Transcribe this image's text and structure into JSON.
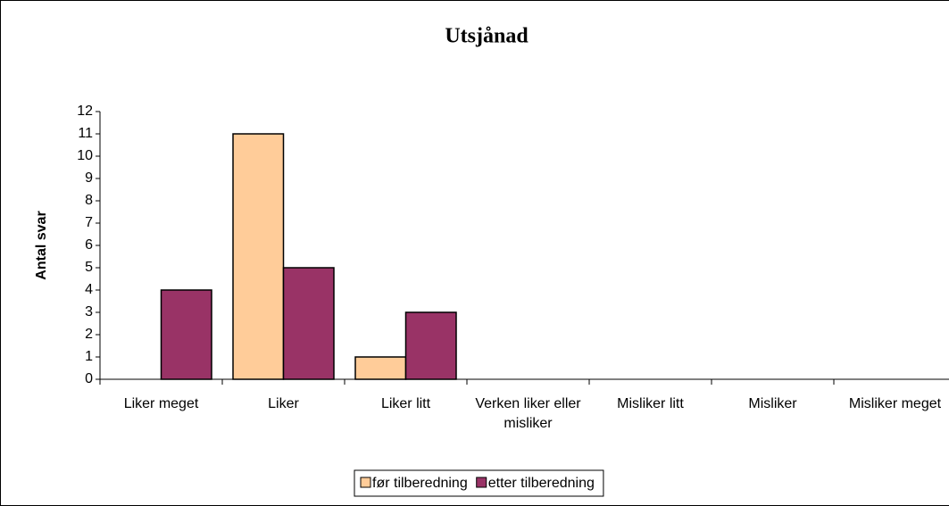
{
  "chart_data": {
    "type": "bar",
    "title": "Utsjånad",
    "y_label": "Antal svar",
    "categories": [
      "Liker meget",
      "Liker",
      "Liker litt",
      "Verken liker eller misliker",
      "Misliker litt",
      "Misliker",
      "Misliker meget"
    ],
    "series": [
      {
        "name": "før tilberedning",
        "color": "#FFCC99",
        "values": [
          0,
          11,
          1,
          0,
          0,
          0,
          0
        ]
      },
      {
        "name": "etter tilberedning",
        "color": "#993366",
        "values": [
          4,
          5,
          3,
          0,
          0,
          0,
          0
        ]
      }
    ],
    "ylim": [
      0,
      12
    ],
    "yticks": [
      0,
      1,
      2,
      3,
      4,
      5,
      6,
      7,
      8,
      9,
      10,
      11,
      12
    ],
    "legend": "bottom",
    "grid": false
  }
}
